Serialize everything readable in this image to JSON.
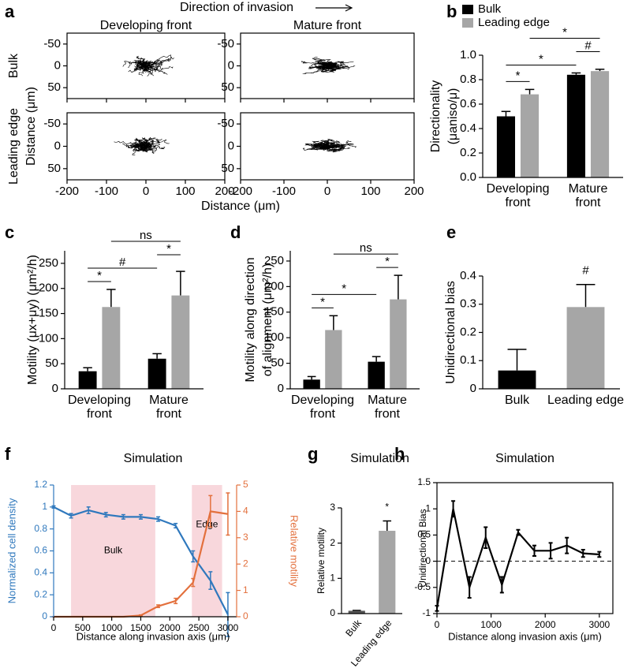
{
  "chart_data": [
    {
      "type": "trajectory",
      "panel": "a",
      "title": "Direction of invasion",
      "columns": [
        "Developing front",
        "Mature front"
      ],
      "rows": [
        "Bulk",
        "Leading edge"
      ],
      "xlabel": "Distance (μm)",
      "ylabel": "Distance (μm)",
      "xlim": [
        -200,
        200
      ],
      "xticks": [
        -200,
        -100,
        0,
        100,
        200
      ],
      "ylim": [
        75,
        -75
      ],
      "yticks": [
        -50,
        0,
        50
      ],
      "color": "#000000"
    },
    {
      "type": "grouped_bar",
      "panel": "b",
      "categories": [
        "Developing front",
        "Mature front"
      ],
      "series": [
        {
          "name": "Bulk",
          "color": "#000000",
          "values": [
            0.5,
            0.84
          ],
          "errors": [
            0.04,
            0.015
          ]
        },
        {
          "name": "Leading edge",
          "color": "#a6a6a6",
          "values": [
            0.68,
            0.87
          ],
          "errors": [
            0.04,
            0.015
          ]
        }
      ],
      "ylabel": [
        "Directionality",
        "(μaniso/μ)"
      ],
      "ylim": [
        0,
        1
      ],
      "yticks": [
        {
          "value": 0,
          "label": "0.0"
        },
        0.2,
        0.4,
        0.6,
        0.8,
        {
          "value": 1,
          "label": "1.0"
        }
      ],
      "annotations": [
        {
          "text": "*",
          "from": [
            0,
            0
          ],
          "to": [
            0,
            1
          ]
        },
        {
          "text": "*",
          "from": [
            0,
            0
          ],
          "to": [
            1,
            0
          ]
        },
        {
          "text": "#",
          "from": [
            1,
            0
          ],
          "to": [
            1,
            1
          ]
        },
        {
          "text": "*",
          "from": [
            0,
            1
          ],
          "to": [
            1,
            1
          ]
        }
      ]
    },
    {
      "type": "grouped_bar",
      "panel": "c",
      "categories": [
        "Developing front",
        "Mature front"
      ],
      "series": [
        {
          "name": "Bulk",
          "color": "#000000",
          "values": [
            35,
            60
          ],
          "errors": [
            7,
            10
          ]
        },
        {
          "name": "Leading edge",
          "color": "#a6a6a6",
          "values": [
            163,
            186
          ],
          "errors": [
            35,
            48
          ]
        }
      ],
      "ylabel": [
        "Motility (μx+μy) (μm²/h)"
      ],
      "ylim": [
        0,
        275
      ],
      "yticks": [
        0,
        50,
        100,
        150,
        200,
        250
      ],
      "annotations": [
        {
          "text": "*",
          "from": [
            0,
            0
          ],
          "to": [
            0,
            1
          ]
        },
        {
          "text": "#",
          "from": [
            0,
            0
          ],
          "to": [
            1,
            0
          ]
        },
        {
          "text": "*",
          "from": [
            1,
            0
          ],
          "to": [
            1,
            1
          ]
        },
        {
          "text": "ns",
          "from": [
            0,
            1
          ],
          "to": [
            1,
            1
          ]
        }
      ]
    },
    {
      "type": "grouped_bar",
      "panel": "d",
      "categories": [
        "Developing front",
        "Mature front"
      ],
      "series": [
        {
          "name": "Bulk",
          "color": "#000000",
          "values": [
            18,
            53
          ],
          "errors": [
            6,
            10
          ]
        },
        {
          "name": "Leading edge",
          "color": "#a6a6a6",
          "values": [
            115,
            175
          ],
          "errors": [
            28,
            47
          ]
        }
      ],
      "ylabel": [
        "Motility along direction",
        "of alignment (μm²/h)"
      ],
      "ylim": [
        0,
        270
      ],
      "yticks": [
        0,
        50,
        100,
        150,
        200,
        250
      ],
      "annotations": [
        {
          "text": "*",
          "from": [
            0,
            0
          ],
          "to": [
            0,
            1
          ]
        },
        {
          "text": "*",
          "from": [
            0,
            0
          ],
          "to": [
            1,
            0
          ]
        },
        {
          "text": "*",
          "from": [
            1,
            0
          ],
          "to": [
            1,
            1
          ]
        },
        {
          "text": "ns",
          "from": [
            0,
            1
          ],
          "to": [
            1,
            1
          ]
        }
      ]
    },
    {
      "type": "bar",
      "panel": "e",
      "categories": [
        "Bulk",
        "Leading edge"
      ],
      "values": [
        0.065,
        0.29
      ],
      "errors": [
        0.075,
        0.08
      ],
      "colors": [
        "#000000",
        "#a6a6a6"
      ],
      "ylabel": [
        "Unidirectional bias"
      ],
      "ylim": [
        0,
        0.4
      ],
      "yticks": [
        0,
        0.1,
        0.2,
        0.3,
        0.4
      ],
      "annotations": [
        {
          "text": "#",
          "from": 1,
          "to": 1
        }
      ]
    },
    {
      "type": "dual_line",
      "panel": "f",
      "title": "Simulation",
      "x": [
        0,
        300,
        600,
        900,
        1200,
        1500,
        1800,
        2100,
        2400,
        2700,
        3000
      ],
      "series": [
        {
          "name": "Normalized cell density",
          "color": "#2f78bd",
          "values": [
            1.0,
            0.92,
            0.97,
            0.93,
            0.91,
            0.91,
            0.89,
            0.83,
            0.55,
            0.33,
            0.02
          ],
          "errors": [
            0.01,
            0.02,
            0.03,
            0.02,
            0.02,
            0.02,
            0.02,
            0.02,
            0.05,
            0.08,
            0.2
          ]
        },
        {
          "name": "Relative motility",
          "color": "#e3703d",
          "axis": "y2",
          "values": [
            0,
            0,
            0,
            0,
            0,
            0.05,
            0.4,
            0.6,
            1.3,
            4.0,
            3.9
          ],
          "errors": [
            0,
            0,
            0,
            0,
            0,
            0.02,
            0.05,
            0.1,
            0.15,
            0.6,
            0.8
          ]
        }
      ],
      "regions": [
        {
          "label": "Bulk",
          "range": [
            300,
            1750
          ]
        },
        {
          "label": "Edge",
          "range": [
            2380,
            2900
          ]
        }
      ],
      "region_color": "#f8d7dc",
      "xlabel": "Distance along invasion axis (μm)",
      "xlim": [
        0,
        3150
      ],
      "xticks": [
        0,
        500,
        1000,
        1500,
        2000,
        2500,
        3000
      ],
      "ylim": [
        0,
        1.2
      ],
      "yticks": [
        0,
        0.2,
        0.4,
        0.6,
        0.8,
        1,
        1.2
      ],
      "y2lim": [
        0,
        5
      ],
      "y2ticks": [
        0,
        1,
        2,
        3,
        4,
        5
      ]
    },
    {
      "type": "bar",
      "panel": "g",
      "title": "Simulation",
      "categories": [
        "Bulk",
        "Leading edge"
      ],
      "values": [
        0.08,
        2.35
      ],
      "errors": [
        0.01,
        0.28
      ],
      "colors": [
        "#555555",
        "#a6a6a6"
      ],
      "ylabel": [
        "Relative motility"
      ],
      "ylim": [
        0,
        3
      ],
      "yticks": [
        0,
        1,
        2,
        3
      ],
      "annotations": [
        {
          "text": "*",
          "from": 1,
          "to": 1
        }
      ]
    },
    {
      "type": "line",
      "panel": "h",
      "title": "Simulation",
      "x": [
        0,
        300,
        600,
        900,
        1200,
        1500,
        1800,
        2100,
        2400,
        2700,
        3000
      ],
      "values": [
        -0.9,
        1.0,
        -0.5,
        0.45,
        -0.45,
        0.55,
        0.2,
        0.2,
        0.3,
        0.15,
        0.13
      ],
      "errors": [
        0.05,
        0.15,
        0.2,
        0.2,
        0.15,
        0.05,
        0.1,
        0.15,
        0.15,
        0.07,
        0.05
      ],
      "color": "#000000",
      "reference_line": 0,
      "xlabel": "Distance along invasion axis (μm)",
      "ylabel": [
        "Unidirectional Bias"
      ],
      "xlim": [
        0,
        3250
      ],
      "xticks": [
        0,
        1000,
        2000,
        3000
      ],
      "ylim": [
        -1,
        1.5
      ],
      "yticks": [
        -1,
        -0.5,
        0,
        0.5,
        1,
        1.5
      ]
    }
  ]
}
